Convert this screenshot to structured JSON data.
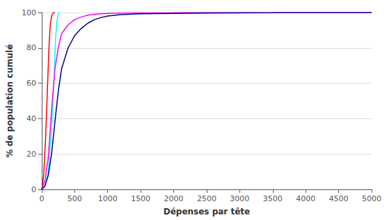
{
  "chart_data": {
    "type": "line",
    "xlabel": "Dépenses par tête",
    "ylabel": "% de population cumulé",
    "xlim": [
      0,
      5000
    ],
    "ylim": [
      0,
      100
    ],
    "xticks": [
      0,
      500,
      1000,
      1500,
      2000,
      2500,
      3000,
      3500,
      4000,
      4500,
      5000
    ],
    "yticks": [
      0,
      20,
      40,
      60,
      80,
      100
    ],
    "grid": true,
    "series": [
      {
        "color": "#ff0000",
        "x": [
          0,
          10,
          30,
          60,
          90,
          110,
          130,
          150,
          170,
          180,
          190,
          200
        ],
        "values": [
          0,
          2,
          8,
          30,
          60,
          80,
          93,
          98,
          99.5,
          100,
          100,
          100
        ]
      },
      {
        "color": "#00ffff",
        "x": [
          0,
          50,
          100,
          150,
          190,
          210,
          230,
          250,
          260,
          270
        ],
        "values": [
          0,
          2,
          10,
          35,
          65,
          85,
          95,
          99,
          100,
          100
        ]
      },
      {
        "color": "#ff00ff",
        "x": [
          0,
          50,
          100,
          150,
          200,
          250,
          300,
          400,
          500,
          600,
          700,
          800,
          900,
          1000,
          1200,
          1500,
          2000,
          2100,
          5000
        ],
        "values": [
          0,
          5,
          18,
          45,
          68,
          80,
          88,
          93,
          96,
          97.5,
          98.5,
          99,
          99.3,
          99.5,
          99.7,
          99.8,
          99.9,
          100,
          100
        ]
      },
      {
        "color": "#000080",
        "x": [
          0,
          50,
          100,
          150,
          200,
          250,
          300,
          400,
          500,
          600,
          700,
          800,
          900,
          1000,
          1200,
          1500,
          2000,
          2500,
          3000,
          3500,
          3600,
          5000
        ],
        "values": [
          0,
          2,
          8,
          20,
          38,
          55,
          68,
          80,
          87,
          91,
          94,
          96,
          97.2,
          98,
          98.8,
          99.3,
          99.5,
          99.7,
          99.8,
          99.9,
          100,
          100
        ]
      }
    ]
  }
}
